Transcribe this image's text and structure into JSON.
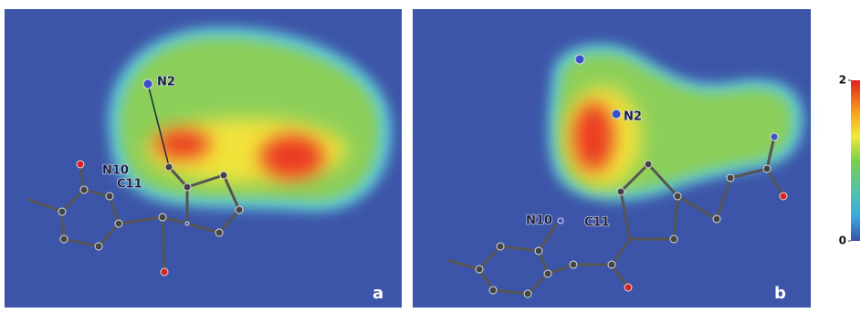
{
  "panels": [
    {
      "letter": "a",
      "atoms": [
        "N2",
        "N10",
        "C11"
      ]
    },
    {
      "letter": "b",
      "atoms": [
        "N2",
        "N10",
        "C11"
      ]
    }
  ],
  "colorbar": {
    "lim": [
      0,
      2
    ],
    "ticks": [
      0,
      2
    ]
  }
}
